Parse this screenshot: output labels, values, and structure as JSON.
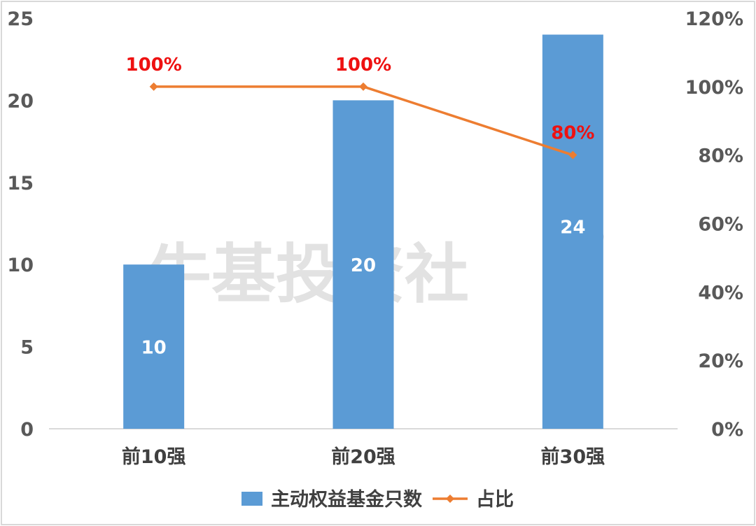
{
  "chart_data": {
    "type": "bar",
    "categories": [
      "前10强",
      "前20强",
      "前30强"
    ],
    "series": [
      {
        "name": "主动权益基金只数",
        "type": "bar",
        "axis": "left",
        "values": [
          10,
          20,
          24
        ],
        "value_labels": [
          "10",
          "20",
          "24"
        ],
        "color": "#5b9bd5"
      },
      {
        "name": "占比",
        "type": "line",
        "axis": "right",
        "values": [
          1.0,
          1.0,
          0.8
        ],
        "value_labels": [
          "100%",
          "100%",
          "80%"
        ],
        "color": "#ed7d31"
      }
    ],
    "y_left": {
      "ylim": [
        0,
        25
      ],
      "ticks": [
        0,
        5,
        10,
        15,
        20,
        25
      ],
      "tick_labels": [
        "0",
        "5",
        "10",
        "15",
        "20",
        "25"
      ]
    },
    "y_right": {
      "ylim": [
        0,
        1.2
      ],
      "ticks": [
        0,
        0.2,
        0.4,
        0.6,
        0.8,
        1.0,
        1.2
      ],
      "tick_labels": [
        "0%",
        "20%",
        "40%",
        "60%",
        "80%",
        "100%",
        "120%"
      ]
    },
    "grid": false,
    "legend_position": "bottom",
    "label_color": "#ee1111"
  },
  "watermark": {
    "text": "牛基投资社",
    "icon": "cow-mascot-icon"
  }
}
